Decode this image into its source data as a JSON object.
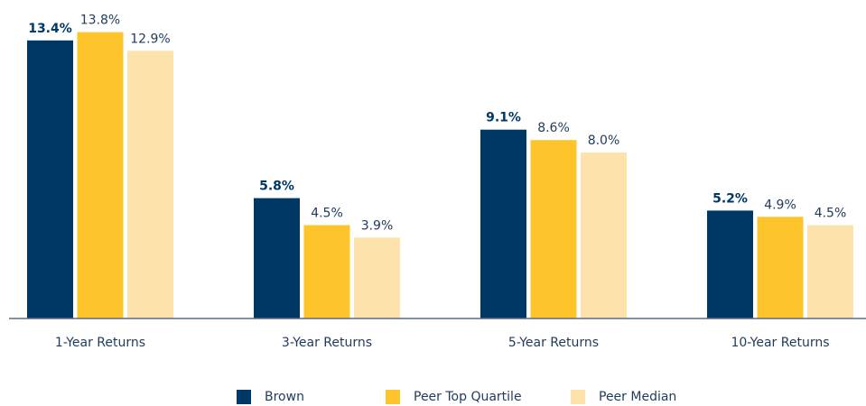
{
  "chart_data": {
    "type": "bar",
    "categories": [
      "1-Year Returns",
      "3-Year Returns",
      "5-Year Returns",
      "10-Year Returns"
    ],
    "series": [
      {
        "name": "Brown",
        "color": "#003865",
        "values": [
          13.4,
          5.8,
          9.1,
          5.2
        ],
        "value_labels": [
          "13.4%",
          "5.8%",
          "9.1%",
          "5.2%"
        ]
      },
      {
        "name": "Peer Top Quartile",
        "color": "#fdc42c",
        "values": [
          13.8,
          4.5,
          8.6,
          4.9
        ],
        "value_labels": [
          "13.8%",
          "4.5%",
          "8.6%",
          "4.9%"
        ]
      },
      {
        "name": "Peer Median",
        "color": "#fde3ab",
        "values": [
          12.9,
          3.9,
          8.0,
          4.5
        ],
        "value_labels": [
          "12.9%",
          "3.9%",
          "8.0%",
          "4.5%"
        ]
      }
    ],
    "legend": "bottom"
  }
}
